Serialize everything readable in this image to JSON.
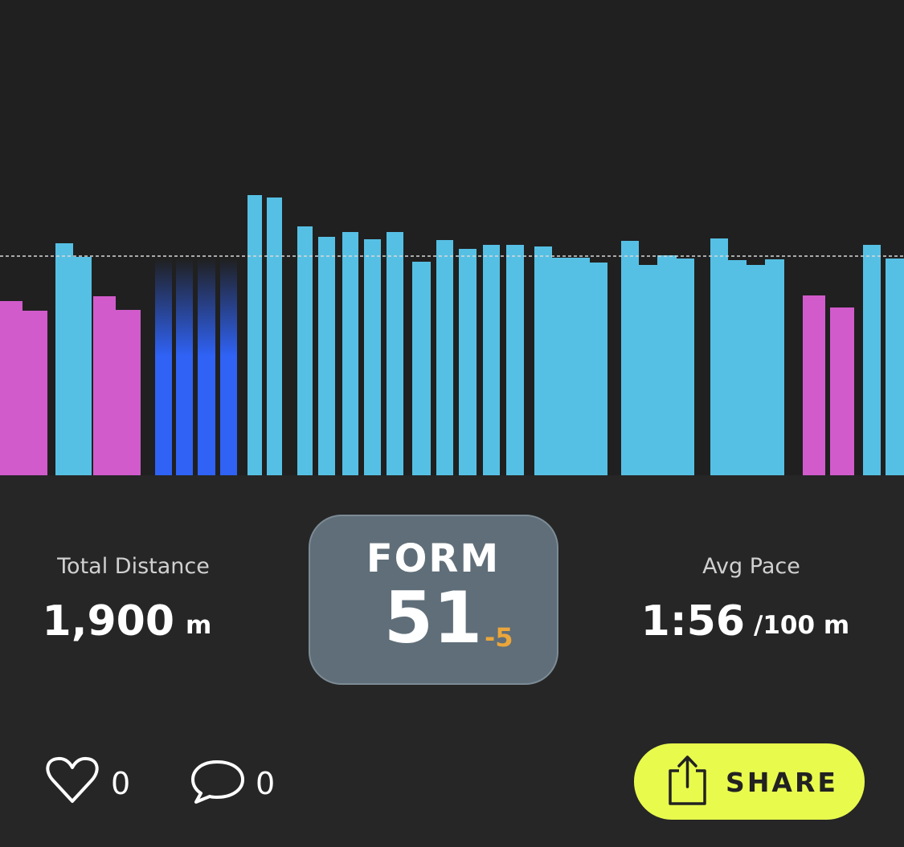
{
  "stats": {
    "distance": {
      "label": "Total Distance",
      "value": "1,900",
      "unit": "m"
    },
    "form": {
      "label": "FORM",
      "value": "51",
      "change": "-5"
    },
    "pace": {
      "label": "Avg Pace",
      "value": "1:56",
      "unit": "/100 m"
    }
  },
  "social": {
    "likes": "0",
    "comments": "0",
    "share": "SHARE"
  }
}
